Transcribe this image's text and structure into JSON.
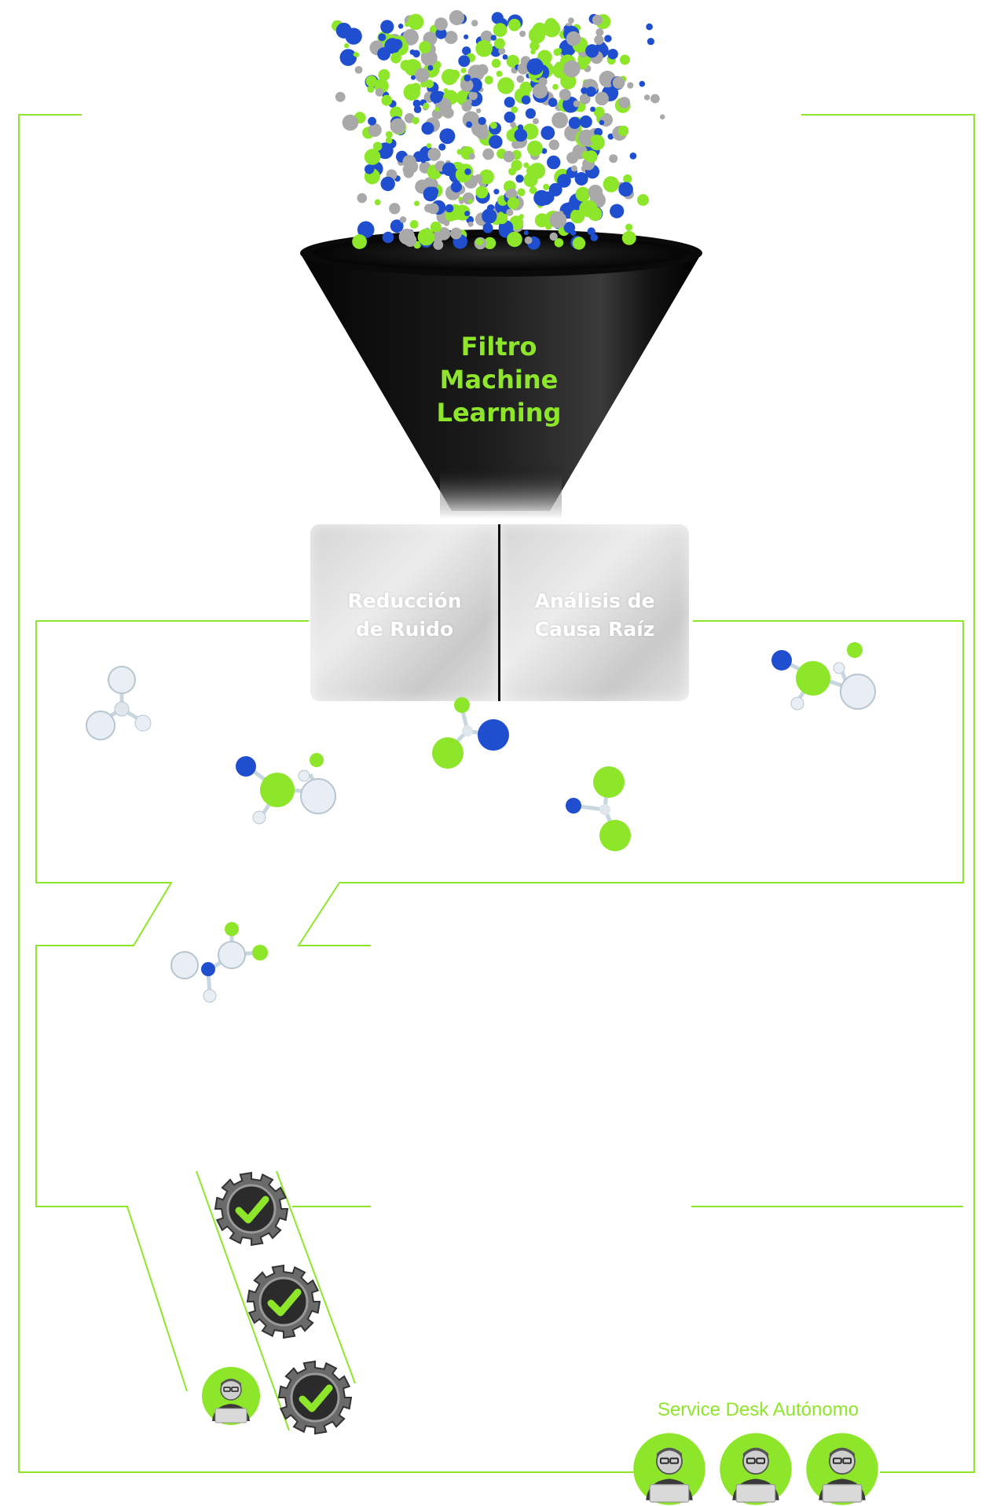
{
  "funnel": {
    "label_lines": [
      "Filtro",
      "Machine",
      "Learning"
    ]
  },
  "cards": {
    "left_lines": [
      "Reducción",
      "de Ruido"
    ],
    "right_lines": [
      "Análisis de",
      "Causa Raíz"
    ]
  },
  "service_desk": {
    "label": "Service Desk Autónomo"
  },
  "colors": {
    "accent_green": "#8ee62a",
    "blue": "#1f4fcf",
    "gray": "#a9a9a9",
    "funnel_black": "#0d0d0d"
  },
  "icons": {
    "gear": "gear-check-icon",
    "avatar": "agent-avatar-icon",
    "molecule": "molecule-icon"
  }
}
